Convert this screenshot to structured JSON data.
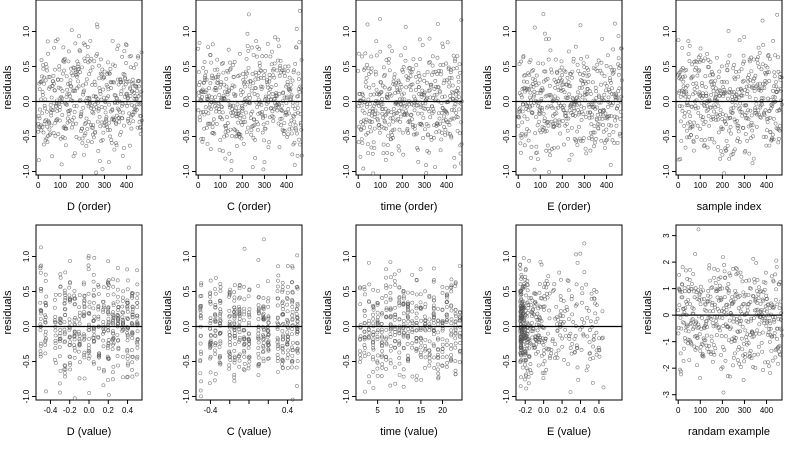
{
  "chart_data": [
    {
      "type": "scatter",
      "xlabel": "D (order)",
      "ylabel": "residuals",
      "xlim": [
        -10,
        470
      ],
      "ylim": [
        -1.05,
        1.45
      ],
      "xticks": [
        0,
        100,
        200,
        300,
        400
      ],
      "yticks": [
        -1.0,
        -0.5,
        0.0,
        0.5,
        1.0
      ],
      "ytick_labels": [
        "-1.0",
        "-0.5",
        "0.0",
        "0.5",
        "1.0"
      ],
      "hline": 0,
      "gen": {
        "xmode": "order",
        "n": 470,
        "sd": 0.38,
        "seed": 11
      }
    },
    {
      "type": "scatter",
      "xlabel": "C (order)",
      "ylabel": "residuals",
      "xlim": [
        -10,
        470
      ],
      "ylim": [
        -1.05,
        1.45
      ],
      "xticks": [
        0,
        100,
        200,
        300,
        400
      ],
      "yticks": [
        -1.0,
        -0.5,
        0.0,
        0.5,
        1.0
      ],
      "ytick_labels": [
        "-1.0",
        "-0.5",
        "0.0",
        "0.5",
        "1.0"
      ],
      "hline": 0,
      "gen": {
        "xmode": "order",
        "n": 470,
        "sd": 0.38,
        "seed": 23
      }
    },
    {
      "type": "scatter",
      "xlabel": "time (order)",
      "ylabel": "residuals",
      "xlim": [
        -10,
        470
      ],
      "ylim": [
        -1.05,
        1.45
      ],
      "xticks": [
        0,
        100,
        200,
        300,
        400
      ],
      "yticks": [
        -1.0,
        -0.5,
        0.0,
        0.5,
        1.0
      ],
      "ytick_labels": [
        "-1.0",
        "-0.5",
        "0.0",
        "0.5",
        "1.0"
      ],
      "hline": 0,
      "gen": {
        "xmode": "order",
        "n": 470,
        "sd": 0.38,
        "seed": 37
      }
    },
    {
      "type": "scatter",
      "xlabel": "E (order)",
      "ylabel": "residuals",
      "xlim": [
        -10,
        470
      ],
      "ylim": [
        -1.05,
        1.45
      ],
      "xticks": [
        0,
        100,
        200,
        300,
        400
      ],
      "yticks": [
        -1.0,
        -0.5,
        0.0,
        0.5,
        1.0
      ],
      "ytick_labels": [
        "-1.0",
        "-0.5",
        "0.0",
        "0.5",
        "1.0"
      ],
      "hline": 0,
      "gen": {
        "xmode": "order",
        "n": 470,
        "sd": 0.38,
        "seed": 41
      }
    },
    {
      "type": "scatter",
      "xlabel": "sample index",
      "ylabel": "residuals",
      "xlim": [
        -10,
        470
      ],
      "ylim": [
        -1.05,
        1.45
      ],
      "xticks": [
        0,
        100,
        200,
        300,
        400
      ],
      "yticks": [
        -1.0,
        -0.5,
        0.0,
        0.5,
        1.0
      ],
      "ytick_labels": [
        "-1.0",
        "-0.5",
        "0.0",
        "0.5",
        "1.0"
      ],
      "hline": 0,
      "gen": {
        "xmode": "order",
        "n": 470,
        "sd": 0.38,
        "seed": 53
      }
    },
    {
      "type": "scatter",
      "xlabel": "D (value)",
      "ylabel": "residuals",
      "xlim": [
        -0.55,
        0.55
      ],
      "ylim": [
        -1.05,
        1.45
      ],
      "xticks": [
        -0.4,
        -0.2,
        0.0,
        0.2,
        0.4
      ],
      "xtick_labels": [
        "-0.4",
        "-0.2",
        "0.0",
        "0.2",
        "0.4"
      ],
      "yticks": [
        -1.0,
        -0.5,
        0.0,
        0.5,
        1.0
      ],
      "ytick_labels": [
        "-1.0",
        "-0.5",
        "0.0",
        "0.5",
        "1.0"
      ],
      "hline": 0,
      "gen": {
        "xmode": "levels",
        "levels": [
          -0.5,
          -0.45,
          -0.35,
          -0.3,
          -0.25,
          -0.2,
          -0.15,
          -0.1,
          -0.05,
          0.0,
          0.05,
          0.1,
          0.15,
          0.2,
          0.25,
          0.3,
          0.35,
          0.4,
          0.45,
          0.5
        ],
        "jitter": 0.006,
        "n": 470,
        "sd": 0.38,
        "seed": 61
      }
    },
    {
      "type": "scatter",
      "xlabel": "C (value)",
      "ylabel": "residuals",
      "xlim": [
        -0.55,
        0.55
      ],
      "ylim": [
        -1.05,
        1.45
      ],
      "xticks": [
        -0.4,
        -0.2,
        0.0,
        0.2,
        0.4
      ],
      "xtick_labels": [
        "-0.4",
        "",
        "",
        "",
        "0.4"
      ],
      "yticks": [
        -1.0,
        -0.5,
        0.0,
        0.5,
        1.0
      ],
      "ytick_labels": [
        "-1.0",
        "-0.5",
        "0.0",
        "0.5",
        "1.0"
      ],
      "hline": 0,
      "gen": {
        "xmode": "levels",
        "levels": [
          -0.5,
          -0.4,
          -0.35,
          -0.3,
          -0.2,
          -0.15,
          -0.1,
          -0.05,
          0.0,
          0.1,
          0.15,
          0.2,
          0.3,
          0.35,
          0.4,
          0.45,
          0.5
        ],
        "jitter": 0.006,
        "n": 470,
        "sd": 0.38,
        "seed": 71
      }
    },
    {
      "type": "scatter",
      "xlabel": "time (value)",
      "ylabel": "residuals",
      "xlim": [
        0,
        24.5
      ],
      "ylim": [
        -1.05,
        1.45
      ],
      "xticks": [
        5,
        10,
        15,
        20
      ],
      "yticks": [
        -1.0,
        -0.5,
        0.0,
        0.5,
        1.0
      ],
      "ytick_labels": [
        "-1.0",
        "-0.5",
        "0.0",
        "0.5",
        "1.0"
      ],
      "hline": 0,
      "gen": {
        "xmode": "levels",
        "levels": [
          1,
          2,
          3,
          4,
          5,
          6,
          7,
          8,
          9,
          10,
          11,
          12,
          13,
          14,
          15,
          16,
          17,
          18,
          19,
          20,
          21,
          22,
          23,
          24
        ],
        "jitter": 0.08,
        "n": 470,
        "sd": 0.38,
        "seed": 83
      }
    },
    {
      "type": "scatter",
      "xlabel": "E (value)",
      "ylabel": "residuals",
      "xlim": [
        -0.3,
        0.85
      ],
      "ylim": [
        -1.05,
        1.45
      ],
      "xticks": [
        -0.2,
        0.0,
        0.2,
        0.4,
        0.6
      ],
      "xtick_labels": [
        "-0.2",
        "0.0",
        "0.2",
        "0.4",
        "0.6"
      ],
      "yticks": [
        -1.0,
        -0.5,
        0.0,
        0.5,
        1.0
      ],
      "ytick_labels": [
        "-1.0",
        "-0.5",
        "0.0",
        "0.5",
        "1.0"
      ],
      "hline": 0,
      "gen": {
        "xmode": "skew",
        "n": 470,
        "sd": 0.38,
        "seed": 97
      }
    },
    {
      "type": "scatter",
      "xlabel": "randam example",
      "ylabel": "residuals",
      "xlim": [
        -10,
        470
      ],
      "ylim": [
        -3.2,
        3.4
      ],
      "xticks": [
        0,
        100,
        200,
        300,
        400
      ],
      "yticks": [
        -3,
        -2,
        -1,
        0,
        1,
        2,
        3
      ],
      "ytick_labels": [
        "-3",
        "-2",
        "-1",
        "0",
        "1",
        "2",
        "3"
      ],
      "hline": 0,
      "gen": {
        "xmode": "order",
        "n": 470,
        "sd": 1.0,
        "seed": 101
      }
    }
  ]
}
